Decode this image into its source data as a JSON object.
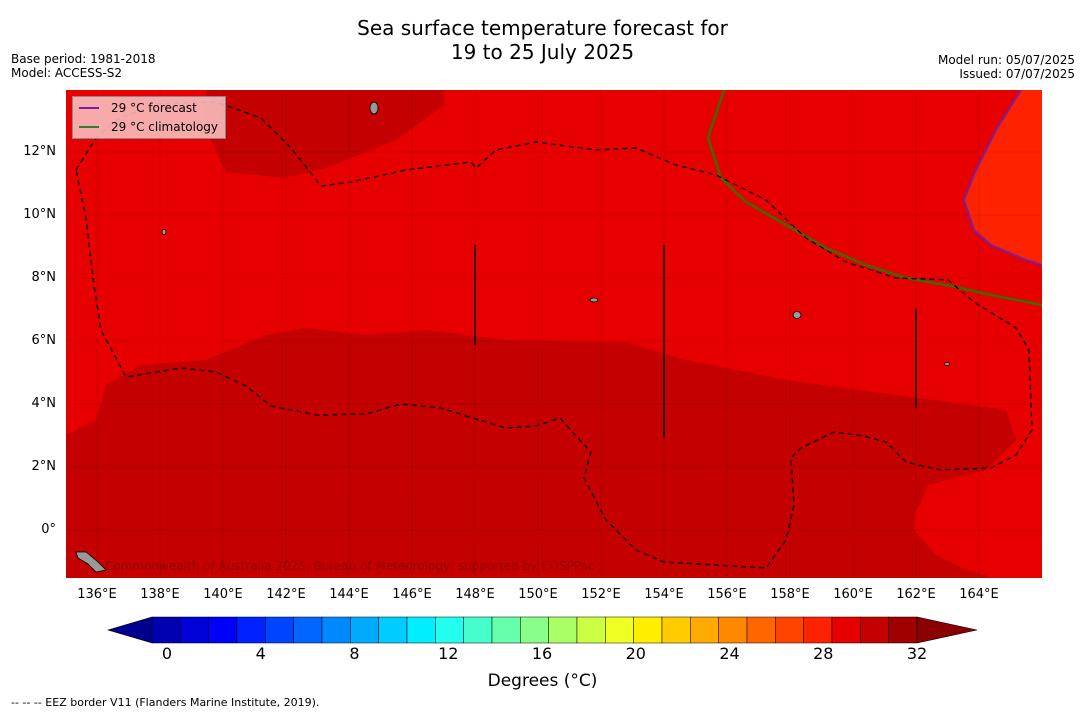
{
  "title_line1": "Sea surface temperature forecast for",
  "title_line2": "19 to 25 July 2025",
  "meta_left": [
    "Base period: 1981-2018",
    "Model: ACCESS-S2"
  ],
  "meta_right": [
    "Model run: 05/07/2025",
    "Issued: 07/07/2025"
  ],
  "legend": [
    {
      "label": "29 °C  forecast",
      "color": "#7a1fa2"
    },
    {
      "label": "29 °C  climatology",
      "color": "#2e7d32"
    }
  ],
  "lat_labels": [
    "12°N",
    "10°N",
    "8°N",
    "6°N",
    "4°N",
    "2°N",
    "0°"
  ],
  "lon_labels": [
    "136°E",
    "138°E",
    "140°E",
    "142°E",
    "144°E",
    "146°E",
    "148°E",
    "150°E",
    "152°E",
    "154°E",
    "156°E",
    "158°E",
    "160°E",
    "162°E",
    "164°E"
  ],
  "credit": "Commonwealth of Australia 2025, Bureau of Meteorology, supported by COSPPac",
  "colorbar": {
    "ticks": [
      "0",
      "4",
      "8",
      "12",
      "16",
      "20",
      "24",
      "28",
      "32"
    ],
    "label": "Degrees (°C)",
    "colors": [
      "#00008f",
      "#0000b0",
      "#0000d8",
      "#0000ff",
      "#0022ff",
      "#0044ff",
      "#0066ff",
      "#0088ff",
      "#00aaff",
      "#00ccff",
      "#00eeff",
      "#22ffee",
      "#44ffcc",
      "#66ffaa",
      "#88ff88",
      "#aaff66",
      "#ccff44",
      "#eeff22",
      "#ffee00",
      "#ffcc00",
      "#ffaa00",
      "#ff8800",
      "#ff6600",
      "#ff4400",
      "#ff2200",
      "#e60000",
      "#c40000",
      "#a00000",
      "#8b0000"
    ]
  },
  "colors": {
    "sst_29_30": "#e60000",
    "sst_30_31": "#c40000",
    "sst_28_29": "#ff2200",
    "eez_line": "#000000"
  },
  "footer": "--  --  -- EEZ border V11 (Flanders Marine Institute, 2019)."
}
